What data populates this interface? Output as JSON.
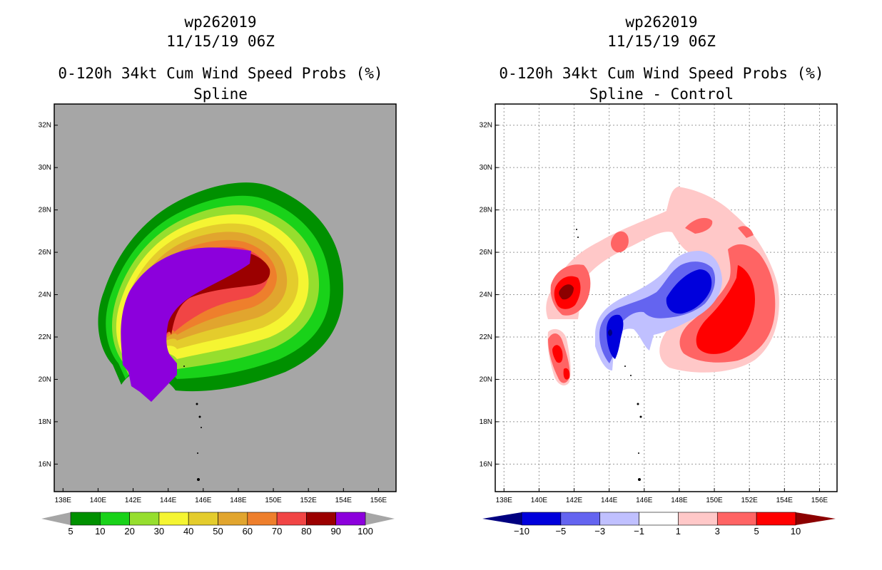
{
  "chart_data": [
    {
      "type": "contour-map",
      "storm_id": "wp262019",
      "datetime": "11/15/19 06Z",
      "title": "0-120h 34kt Cum Wind Speed Probs (%)",
      "subtitle": "Spline",
      "units": "%",
      "lon_range": [
        137.5,
        157
      ],
      "lat_range": [
        14.7,
        33
      ],
      "x_ticks": [
        "138E",
        "140E",
        "142E",
        "144E",
        "146E",
        "148E",
        "150E",
        "152E",
        "154E",
        "156E"
      ],
      "y_ticks": [
        "32N",
        "30N",
        "28N",
        "26N",
        "24N",
        "22N",
        "20N",
        "18N",
        "16N"
      ],
      "colorbar": {
        "levels": [
          "5",
          "10",
          "20",
          "30",
          "40",
          "50",
          "60",
          "70",
          "80",
          "90",
          "100"
        ],
        "colors": [
          "#009000",
          "#19d219",
          "#96de2e",
          "#f5f532",
          "#e4cc2c",
          "#e1a52e",
          "#ee7f2c",
          "#f14545",
          "#9b0000",
          "#8c00dc"
        ]
      },
      "background_color": "#a6a6a6"
    },
    {
      "type": "contour-map",
      "storm_id": "wp262019",
      "datetime": "11/15/19 06Z",
      "title": "0-120h 34kt Cum Wind Speed Probs (%)",
      "subtitle": "Spline - Control",
      "units": "%",
      "lon_range": [
        137.5,
        157
      ],
      "lat_range": [
        14.7,
        33
      ],
      "x_ticks": [
        "138E",
        "140E",
        "142E",
        "144E",
        "146E",
        "148E",
        "150E",
        "152E",
        "154E",
        "156E"
      ],
      "y_ticks": [
        "32N",
        "30N",
        "28N",
        "26N",
        "24N",
        "22N",
        "20N",
        "18N",
        "16N"
      ],
      "colorbar": {
        "levels": [
          "−10",
          "−5",
          "−3",
          "−1",
          "1",
          "3",
          "5",
          "10"
        ],
        "colors": [
          "#0000dc",
          "#6464f0",
          "#c0c0ff",
          "#ffffff",
          "#ffc8c8",
          "#ff6464",
          "#ff0000"
        ]
      }
    }
  ]
}
